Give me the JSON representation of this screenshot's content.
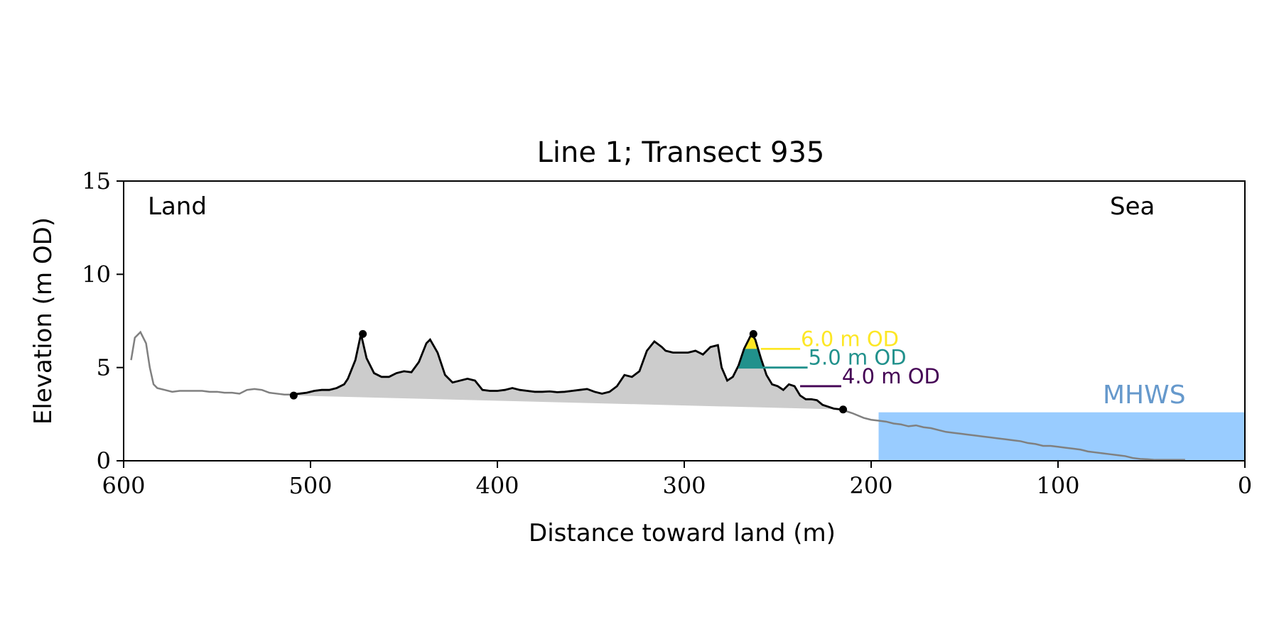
{
  "chart_data": {
    "type": "area",
    "title": "Line 1; Transect 935",
    "xlabel": "Distance toward land (m)",
    "ylabel": "Elevation (m OD)",
    "xlim": [
      600,
      0
    ],
    "ylim": [
      0,
      15
    ],
    "x_ticks": [
      600,
      500,
      400,
      300,
      200,
      100,
      0
    ],
    "y_ticks": [
      0,
      5,
      10,
      15
    ],
    "grid": false,
    "annotations": {
      "land": "Land",
      "sea": "Sea",
      "mhws": "MHWS"
    },
    "mhws_elevation": 2.6,
    "colors": {
      "profile_full": "#808080",
      "dune_profile": "#000000",
      "dune_fill": "#cccccc",
      "mhws_fill": "#99ccff",
      "mhws_text": "#6699cc",
      "level_6": "#fde725",
      "level_5": "#21918c",
      "level_4": "#440154"
    },
    "full_profile": {
      "x": [
        596,
        594,
        591,
        588,
        586,
        584,
        582,
        578,
        574,
        570,
        566,
        562,
        558,
        554,
        550,
        546,
        542,
        538,
        534,
        530,
        526,
        522,
        518,
        514,
        510,
        506,
        502,
        498,
        494,
        490,
        486,
        482,
        480,
        476,
        473,
        470,
        466,
        462,
        458,
        454,
        450,
        446,
        442,
        438,
        436,
        432,
        428,
        424,
        420,
        416,
        412,
        408,
        404,
        400,
        396,
        392,
        388,
        384,
        380,
        376,
        372,
        368,
        364,
        360,
        356,
        352,
        348,
        344,
        340,
        336,
        332,
        328,
        324,
        320,
        316,
        312,
        310,
        306,
        302,
        298,
        294,
        290,
        286,
        282,
        280,
        277,
        274,
        271,
        268,
        264,
        262,
        259,
        256,
        253,
        250,
        247,
        244,
        241,
        238,
        235,
        232,
        229,
        226,
        223,
        220,
        216,
        210,
        204,
        200,
        196,
        192,
        188,
        184,
        180,
        176,
        172,
        168,
        164,
        160,
        156,
        152,
        148,
        144,
        140,
        136,
        132,
        128,
        124,
        120,
        116,
        112,
        108,
        104,
        100,
        96,
        92,
        88,
        84,
        80,
        76,
        72,
        68,
        64,
        60,
        56,
        52,
        48,
        44,
        40,
        36,
        32
      ],
      "y": [
        5.4,
        6.6,
        6.9,
        6.3,
        5.0,
        4.1,
        3.9,
        3.8,
        3.7,
        3.75,
        3.75,
        3.75,
        3.75,
        3.7,
        3.7,
        3.65,
        3.65,
        3.6,
        3.8,
        3.85,
        3.8,
        3.65,
        3.6,
        3.55,
        3.55,
        3.6,
        3.65,
        3.75,
        3.8,
        3.8,
        3.9,
        4.1,
        4.4,
        5.4,
        6.8,
        5.5,
        4.7,
        4.5,
        4.5,
        4.7,
        4.8,
        4.75,
        5.3,
        6.3,
        6.5,
        5.8,
        4.6,
        4.2,
        4.3,
        4.4,
        4.3,
        3.8,
        3.75,
        3.75,
        3.8,
        3.9,
        3.8,
        3.75,
        3.7,
        3.7,
        3.72,
        3.68,
        3.7,
        3.75,
        3.8,
        3.85,
        3.7,
        3.6,
        3.7,
        4.0,
        4.6,
        4.5,
        4.8,
        5.9,
        6.4,
        6.1,
        5.9,
        5.8,
        5.8,
        5.8,
        5.9,
        5.7,
        6.1,
        6.2,
        5.0,
        4.3,
        4.5,
        5.1,
        6.0,
        6.8,
        6.5,
        5.5,
        4.6,
        4.1,
        4.0,
        3.8,
        4.1,
        4.0,
        3.5,
        3.3,
        3.3,
        3.25,
        3.0,
        2.9,
        2.8,
        2.75,
        2.55,
        2.3,
        2.2,
        2.15,
        2.1,
        2.0,
        1.95,
        1.85,
        1.9,
        1.8,
        1.75,
        1.65,
        1.55,
        1.5,
        1.45,
        1.4,
        1.35,
        1.3,
        1.25,
        1.2,
        1.15,
        1.1,
        1.05,
        0.95,
        0.9,
        0.8,
        0.8,
        0.75,
        0.7,
        0.65,
        0.6,
        0.5,
        0.45,
        0.4,
        0.35,
        0.3,
        0.25,
        0.15,
        0.1,
        0.08,
        0.05,
        0.05,
        0.05,
        0.05,
        0.05
      ]
    },
    "dune_segment": {
      "x_start": 509,
      "x_end": 215,
      "y_start": 3.5,
      "y_end": 2.75,
      "markers": [
        {
          "x": 509,
          "y": 3.5
        },
        {
          "x": 472,
          "y": 6.8
        },
        {
          "x": 263,
          "y": 6.8
        },
        {
          "x": 215,
          "y": 2.75
        }
      ]
    },
    "levels": [
      {
        "label": "6.0 m OD",
        "value": 6.0,
        "x_from": 259,
        "x_to": 238,
        "fill_from": 6.0,
        "fill_to": 6.8,
        "color": "#fde725"
      },
      {
        "label": "5.0 m OD",
        "value": 5.0,
        "x_from": 271,
        "x_to": 234,
        "fill_from": 5.0,
        "fill_to": 6.0,
        "color": "#21918c"
      },
      {
        "label": "4.0 m OD",
        "value": 4.0,
        "x_from": 238,
        "x_to": 216,
        "fill_from": null,
        "fill_to": null,
        "color": "#440154"
      }
    ]
  }
}
